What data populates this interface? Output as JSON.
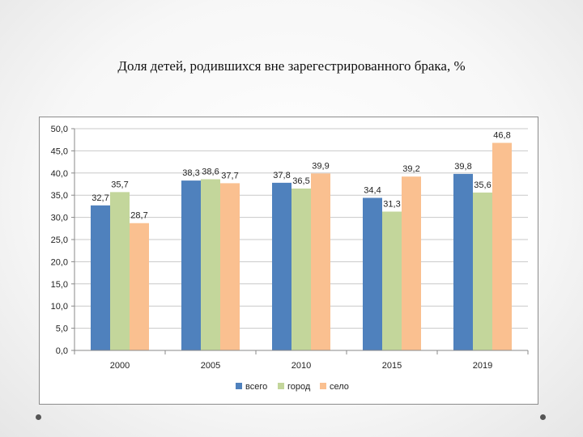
{
  "slide": {
    "title": "Доля  детей, родившихся вне зарегестрированного брака, %"
  },
  "chart_data": {
    "type": "bar",
    "title": "",
    "xlabel": "",
    "ylabel": "",
    "categories": [
      "2000",
      "2005",
      "2010",
      "2015",
      "2019"
    ],
    "ylim": [
      0,
      50
    ],
    "ytick_step": 5,
    "ytick_labels": [
      "0,0",
      "5,0",
      "10,0",
      "15,0",
      "20,0",
      "25,0",
      "30,0",
      "35,0",
      "40,0",
      "45,0",
      "50,0"
    ],
    "grid": true,
    "legend_position": "bottom",
    "series": [
      {
        "name": "всего",
        "color": "#4f81bd",
        "values": [
          32.7,
          38.3,
          37.8,
          34.4,
          39.8
        ],
        "labels": [
          "32,7",
          "38,3",
          "37,8",
          "34,4",
          "39,8"
        ]
      },
      {
        "name": "город",
        "color": "#c3d69b",
        "values": [
          35.7,
          38.6,
          36.5,
          31.3,
          35.6
        ],
        "labels": [
          "35,7",
          "38,6",
          "36,5",
          "31,3",
          "35,6"
        ]
      },
      {
        "name": "село",
        "color": "#fac090",
        "values": [
          28.7,
          37.7,
          39.9,
          39.2,
          46.8
        ],
        "labels": [
          "28,7",
          "37,7",
          "39,9",
          "39,2",
          "46,8"
        ]
      }
    ]
  }
}
